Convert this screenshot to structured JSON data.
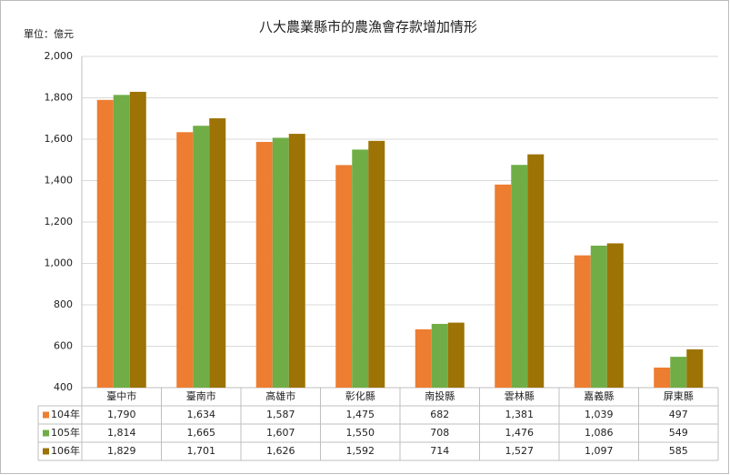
{
  "chart_data": {
    "type": "bar",
    "title": "八大農業縣市的農漁會存款增加情形",
    "unit_label": "單位：億元",
    "categories": [
      "臺中市",
      "臺南市",
      "高雄市",
      "彰化縣",
      "南投縣",
      "雲林縣",
      "嘉義縣",
      "屏東縣"
    ],
    "series": [
      {
        "name": "104年",
        "color": "#ed7d31",
        "values": [
          1790,
          1634,
          1587,
          1475,
          682,
          1381,
          1039,
          497
        ],
        "value_labels": [
          "1,790",
          "1,634",
          "1,587",
          "1,475",
          "682",
          "1,381",
          "1,039",
          "497"
        ]
      },
      {
        "name": "105年",
        "color": "#70ad47",
        "values": [
          1814,
          1665,
          1607,
          1550,
          708,
          1476,
          1086,
          549
        ],
        "value_labels": [
          "1,814",
          "1,665",
          "1,607",
          "1,550",
          "708",
          "1,476",
          "1,086",
          "549"
        ]
      },
      {
        "name": "106年",
        "color": "#9c7304",
        "values": [
          1829,
          1701,
          1626,
          1592,
          714,
          1527,
          1097,
          585
        ],
        "value_labels": [
          "1,829",
          "1,701",
          "1,626",
          "1,592",
          "714",
          "1,527",
          "1,097",
          "585"
        ]
      }
    ],
    "ylim": [
      400,
      2000
    ],
    "yticks": [
      400,
      600,
      800,
      {
        "value": 1000,
        "label": "1,000"
      },
      {
        "value": 1200,
        "label": "1,200"
      },
      {
        "value": 1400,
        "label": "1,400"
      },
      {
        "value": 1600,
        "label": "1,600"
      },
      {
        "value": 1800,
        "label": "1,800"
      },
      {
        "value": 2000,
        "label": "2,000"
      }
    ],
    "grid": true
  }
}
